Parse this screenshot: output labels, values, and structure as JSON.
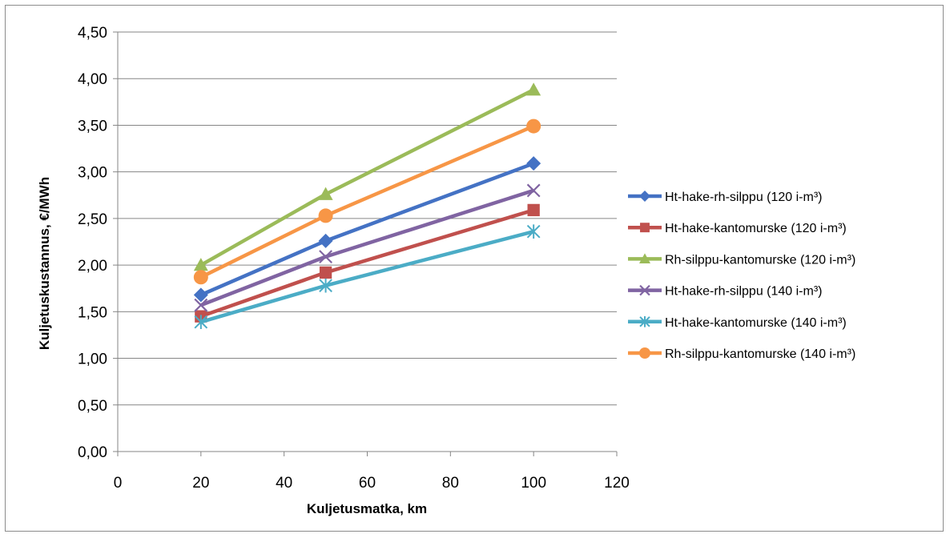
{
  "chart_data": {
    "type": "line",
    "title": "",
    "xlabel": "Kuljetusmatka, km",
    "ylabel": "Kuljetuskustannus, €/MWh",
    "xlim": [
      0,
      120
    ],
    "ylim": [
      0,
      4.5
    ],
    "x_ticks": [
      "0",
      "20",
      "40",
      "60",
      "80",
      "100",
      "120"
    ],
    "y_ticks": [
      "0,00",
      "0,50",
      "1,00",
      "1,50",
      "2,00",
      "2,50",
      "3,00",
      "3,50",
      "4,00",
      "4,50"
    ],
    "grid": "horizontal",
    "legend_position": "right",
    "series": [
      {
        "name": "Ht-hake-rh-silppu (120 i-m³)",
        "color": "#4472C4",
        "marker": "diamond",
        "x": [
          20,
          50,
          100
        ],
        "y": [
          1.68,
          2.26,
          3.09
        ]
      },
      {
        "name": "Ht-hake-kantomurske (120 i-m³)",
        "color": "#C0504D",
        "marker": "square",
        "x": [
          20,
          50,
          100
        ],
        "y": [
          1.45,
          1.92,
          2.59
        ]
      },
      {
        "name": "Rh-silppu-kantomurske (120 i-m³)",
        "color": "#9BBB59",
        "marker": "triangle",
        "x": [
          20,
          50,
          100
        ],
        "y": [
          2.0,
          2.76,
          3.88
        ]
      },
      {
        "name": "Ht-hake-rh-silppu (140 i-m³)",
        "color": "#8064A2",
        "marker": "x",
        "x": [
          20,
          50,
          100
        ],
        "y": [
          1.57,
          2.09,
          2.8
        ]
      },
      {
        "name": "Ht-hake-kantomurske (140 i-m³)",
        "color": "#4BACC6",
        "marker": "star",
        "x": [
          20,
          50,
          100
        ],
        "y": [
          1.39,
          1.78,
          2.36
        ]
      },
      {
        "name": "Rh-silppu-kantomurske (140 i-m³)",
        "color": "#F79646",
        "marker": "circle",
        "x": [
          20,
          50,
          100
        ],
        "y": [
          1.87,
          2.53,
          3.49
        ]
      }
    ]
  }
}
